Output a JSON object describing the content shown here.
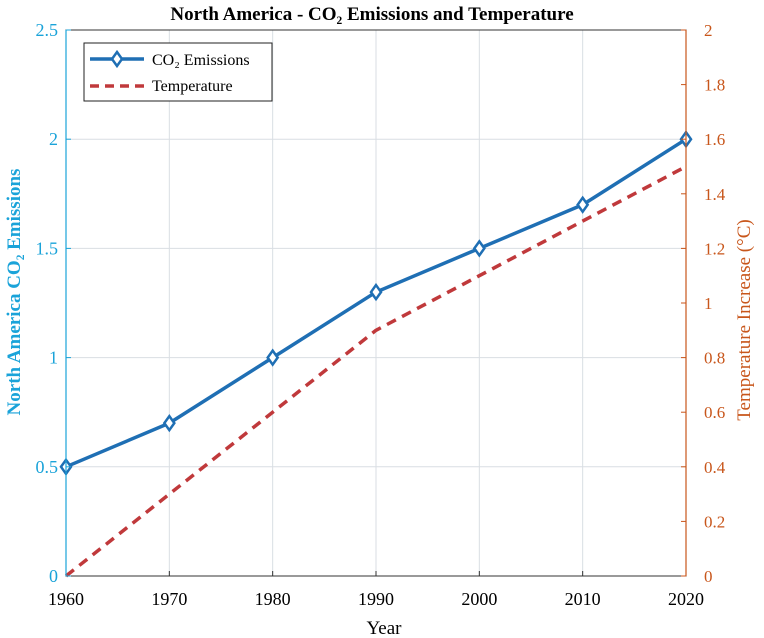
{
  "chart_data": {
    "type": "line",
    "title": "North America - CO₂ Emissions and Temperature",
    "xlabel": "Year",
    "ylabel_left": "North America CO₂ Emissions",
    "ylabel_right": "Temperature Increase (°C)",
    "x": [
      1960,
      1970,
      1980,
      1990,
      2000,
      2010,
      2020
    ],
    "xlim": [
      1960,
      2020
    ],
    "ylim_left": [
      0,
      2.5
    ],
    "ylim_right": [
      0,
      2
    ],
    "xticks": [
      "1960",
      "1970",
      "1980",
      "1990",
      "2000",
      "2010",
      "2020"
    ],
    "yticks_left": [
      "0",
      "0.5",
      "1",
      "1.5",
      "2",
      "2.5"
    ],
    "yticks_right": [
      "0",
      "0.2",
      "0.4",
      "0.6",
      "0.8",
      "1",
      "1.2",
      "1.4",
      "1.6",
      "1.8",
      "2"
    ],
    "grid": true,
    "legend_position": "top-left",
    "series": [
      {
        "name": "CO₂ Emissions",
        "axis": "left",
        "values": [
          0.5,
          0.7,
          1.0,
          1.3,
          1.5,
          1.7,
          2.0
        ],
        "color": "#1f6fb4",
        "style": "solid",
        "marker": "diamond"
      },
      {
        "name": "Temperature",
        "axis": "right",
        "values": [
          0.0,
          0.3,
          0.6,
          0.9,
          1.1,
          1.3,
          1.5
        ],
        "color": "#c0393b",
        "style": "dashed",
        "marker": "none"
      }
    ],
    "colors": {
      "left_axis": "#1aa3d9",
      "right_axis": "#c8561b",
      "grid": "#d9dee3",
      "frame": "#333333"
    }
  }
}
